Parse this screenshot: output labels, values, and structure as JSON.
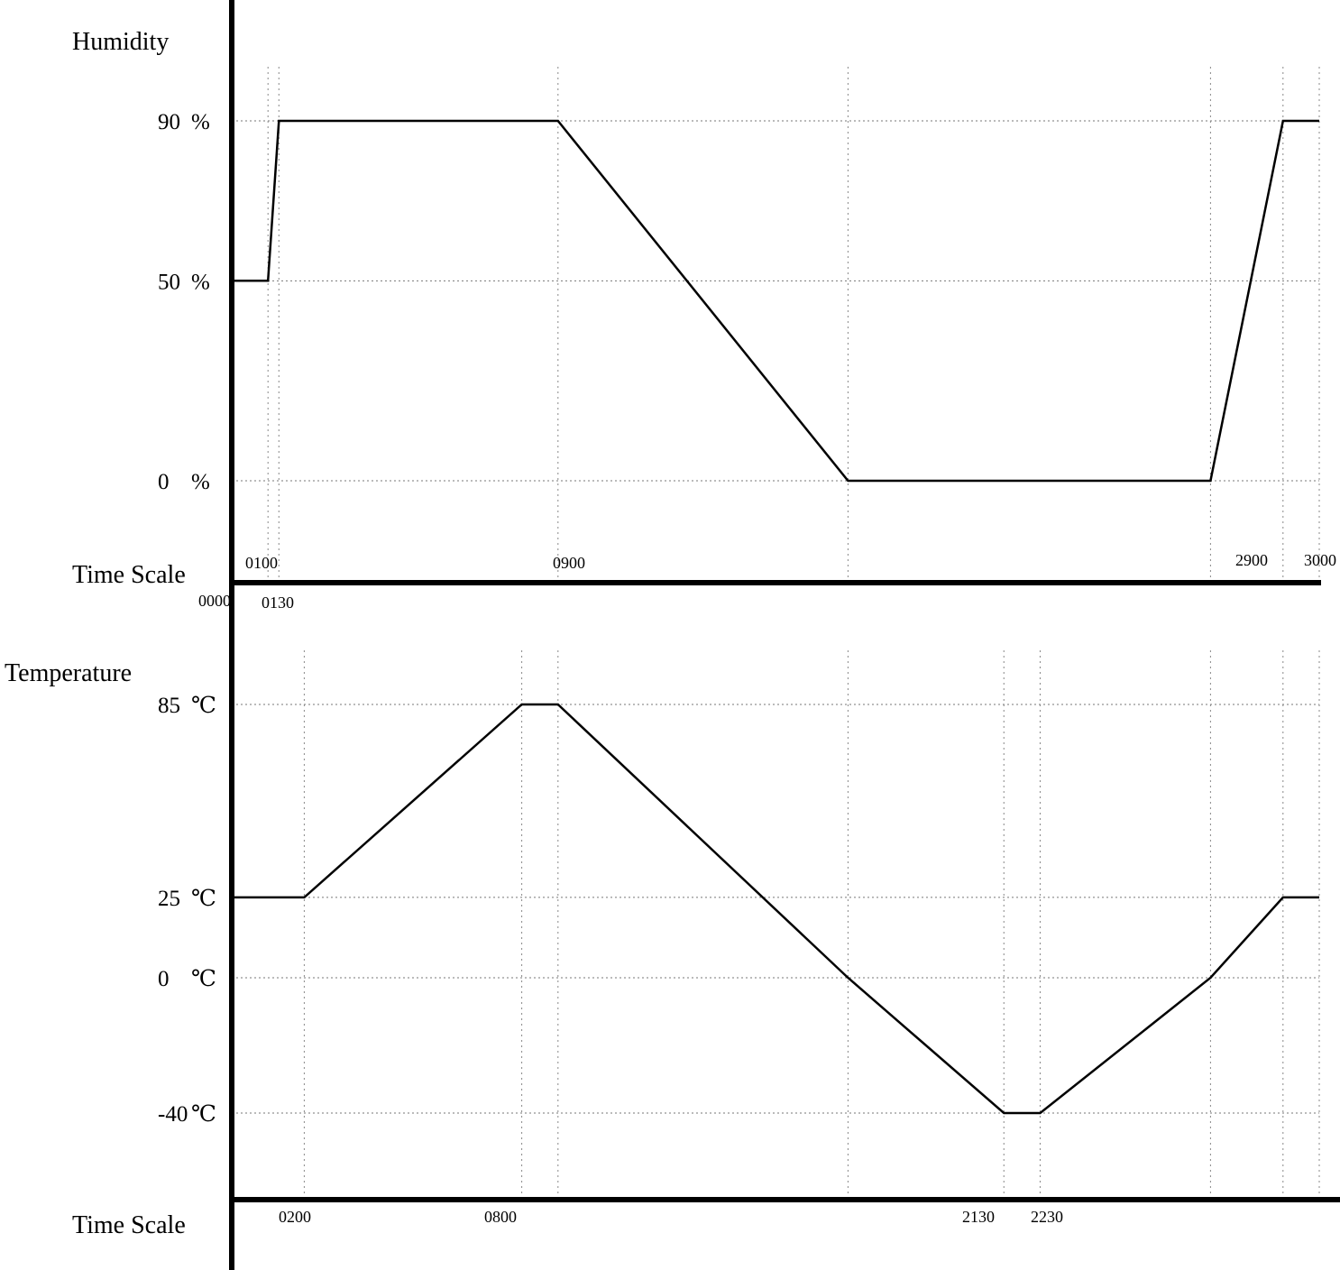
{
  "chart_data": [
    {
      "type": "line",
      "ylabel": "Humidity",
      "xlabel": "Time Scale",
      "y_unit": "%",
      "y_ticks": [
        {
          "value": 90,
          "label": "90"
        },
        {
          "value": 50,
          "label": "50"
        },
        {
          "value": 0,
          "label": "0"
        }
      ],
      "x_ticks": [
        {
          "value": 0,
          "label": "0000"
        },
        {
          "value": 100,
          "label": "0100"
        },
        {
          "value": 130,
          "label": "0130"
        },
        {
          "value": 900,
          "label": "0900"
        },
        {
          "value": 2900,
          "label": "2900"
        },
        {
          "value": 3000,
          "label": "3000"
        }
      ],
      "series": [
        {
          "points": [
            [
              0,
              50
            ],
            [
              100,
              50
            ],
            [
              130,
              90
            ],
            [
              900,
              90
            ],
            [
              1700,
              0
            ],
            [
              2700,
              0
            ],
            [
              2900,
              90
            ],
            [
              3000,
              90
            ]
          ]
        }
      ],
      "grid": "dotted"
    },
    {
      "type": "line",
      "ylabel": "Temperature",
      "xlabel": "Time Scale",
      "y_unit": "℃",
      "y_ticks": [
        {
          "value": 85,
          "label": "85"
        },
        {
          "value": 25,
          "label": "25"
        },
        {
          "value": 0,
          "label": "0"
        },
        {
          "value": -40,
          "label": "-40"
        }
      ],
      "x_ticks": [
        {
          "value": 200,
          "label": "0200"
        },
        {
          "value": 800,
          "label": "0800"
        },
        {
          "value": 2130,
          "label": "2130"
        },
        {
          "value": 2230,
          "label": "2230"
        }
      ],
      "series": [
        {
          "points": [
            [
              0,
              25
            ],
            [
              200,
              25
            ],
            [
              800,
              85
            ],
            [
              900,
              85
            ],
            [
              1700,
              0
            ],
            [
              2130,
              -40
            ],
            [
              2230,
              -40
            ],
            [
              2700,
              0
            ],
            [
              2900,
              25
            ],
            [
              3000,
              25
            ]
          ]
        }
      ],
      "grid": "dotted"
    }
  ]
}
